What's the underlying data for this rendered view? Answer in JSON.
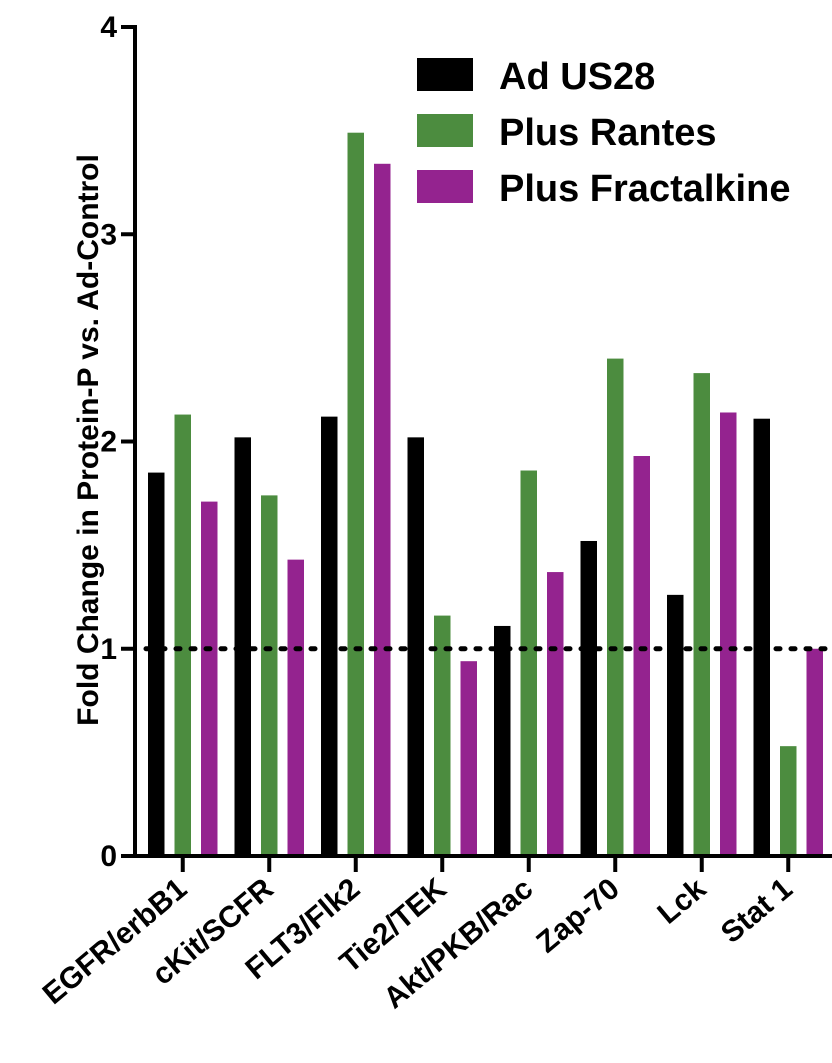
{
  "chart_data": {
    "type": "bar",
    "title": "",
    "xlabel": "",
    "ylabel": "Fold Change in Protein-P vs. Ad-Control",
    "ylim": [
      0,
      4
    ],
    "yticks": [
      "0",
      "1",
      "2",
      "3",
      "4"
    ],
    "reference_line": 1,
    "legend_position": "top-right",
    "categories": [
      "EGFR/erbB1",
      "cKit/SCFR",
      "FLT3/Flk2",
      "Tie2/TEK",
      "Akt/PKB/Rac",
      "Zap-70",
      "Lck",
      "Stat 1"
    ],
    "series": [
      {
        "name": "Ad US28",
        "color": "#000000",
        "values": [
          1.85,
          2.02,
          2.12,
          2.02,
          1.11,
          1.52,
          1.26,
          2.11
        ]
      },
      {
        "name": "Plus Rantes",
        "color": "#4c8c3f",
        "values": [
          2.13,
          1.74,
          3.49,
          1.16,
          1.86,
          2.4,
          2.33,
          0.53
        ]
      },
      {
        "name": "Plus Fractalkine",
        "color": "#94238f",
        "values": [
          1.71,
          1.43,
          3.34,
          0.94,
          1.37,
          1.93,
          2.14,
          1.0
        ]
      }
    ]
  }
}
